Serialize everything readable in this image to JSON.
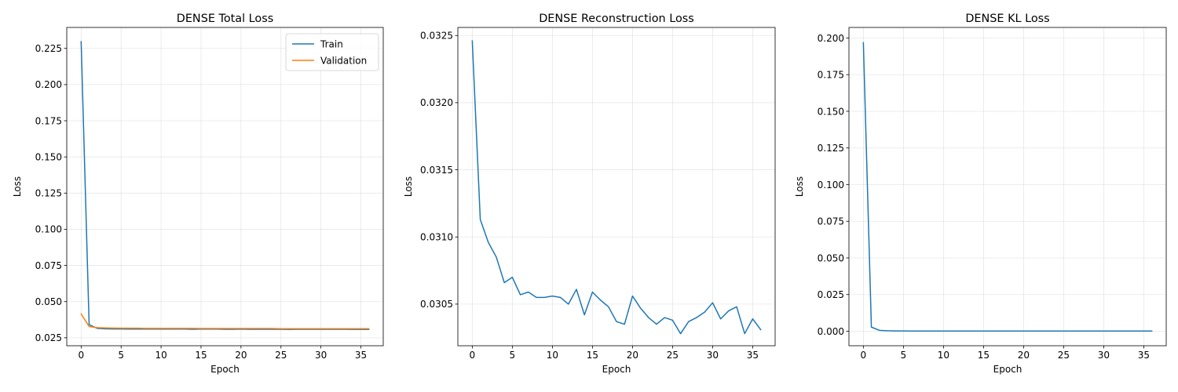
{
  "chart_data": [
    {
      "type": "line",
      "title": "DENSE Total Loss",
      "xlabel": "Epoch",
      "ylabel": "Loss",
      "xlim": [
        -1.8,
        37.8
      ],
      "ylim": [
        0.0195,
        0.2395
      ],
      "xticks": [
        0,
        5,
        10,
        15,
        20,
        25,
        30,
        35
      ],
      "yticks": [
        0.025,
        0.05,
        0.075,
        0.1,
        0.125,
        0.15,
        0.175,
        0.2,
        0.225
      ],
      "ytick_labels": [
        "0.025",
        "0.050",
        "0.075",
        "0.100",
        "0.125",
        "0.150",
        "0.175",
        "0.200",
        "0.225"
      ],
      "grid": true,
      "legend": "top-right",
      "x": [
        0,
        1,
        2,
        3,
        4,
        5,
        6,
        7,
        8,
        9,
        10,
        11,
        12,
        13,
        14,
        15,
        16,
        17,
        18,
        19,
        20,
        21,
        22,
        23,
        24,
        25,
        26,
        27,
        28,
        29,
        30,
        31,
        32,
        33,
        34,
        35,
        36
      ],
      "series": [
        {
          "name": "Train",
          "color": "#1f77b4",
          "values": [
            0.2297,
            0.0341,
            0.0315,
            0.0312,
            0.0311,
            0.0311,
            0.031,
            0.031,
            0.031,
            0.031,
            0.031,
            0.031,
            0.031,
            0.031,
            0.0309,
            0.031,
            0.031,
            0.031,
            0.0309,
            0.0309,
            0.031,
            0.0309,
            0.0309,
            0.0309,
            0.0309,
            0.0309,
            0.0308,
            0.0309,
            0.0309,
            0.0309,
            0.0309,
            0.0309,
            0.0309,
            0.0309,
            0.0308,
            0.0309,
            0.0308
          ]
        },
        {
          "name": "Validation",
          "color": "#ff7f0e",
          "values": [
            0.0415,
            0.0328,
            0.032,
            0.0318,
            0.0317,
            0.0316,
            0.0316,
            0.0316,
            0.0315,
            0.0315,
            0.0315,
            0.0315,
            0.0315,
            0.0315,
            0.0315,
            0.0314,
            0.0314,
            0.0314,
            0.0314,
            0.0314,
            0.0314,
            0.0314,
            0.0314,
            0.0314,
            0.0314,
            0.0313,
            0.0313,
            0.0313,
            0.0313,
            0.0313,
            0.0313,
            0.0313,
            0.0313,
            0.0313,
            0.0313,
            0.0313,
            0.0313
          ]
        }
      ]
    },
    {
      "type": "line",
      "title": "DENSE Reconstruction Loss",
      "xlabel": "Epoch",
      "ylabel": "Loss",
      "xlim": [
        -1.8,
        37.8
      ],
      "ylim": [
        0.03019,
        0.03256
      ],
      "xticks": [
        0,
        5,
        10,
        15,
        20,
        25,
        30,
        35
      ],
      "yticks": [
        0.0305,
        0.031,
        0.0315,
        0.032,
        0.0325
      ],
      "ytick_labels": [
        "0.0305",
        "0.0310",
        "0.0315",
        "0.0320",
        "0.0325"
      ],
      "grid": true,
      "legend": "",
      "x": [
        0,
        1,
        2,
        3,
        4,
        5,
        6,
        7,
        8,
        9,
        10,
        11,
        12,
        13,
        14,
        15,
        16,
        17,
        18,
        19,
        20,
        21,
        22,
        23,
        24,
        25,
        26,
        27,
        28,
        29,
        30,
        31,
        32,
        33,
        34,
        35,
        36
      ],
      "series": [
        {
          "color": "#1f77b4",
          "values": [
            0.03246,
            0.03113,
            0.03096,
            0.03085,
            0.03066,
            0.0307,
            0.03057,
            0.03059,
            0.03055,
            0.03055,
            0.03056,
            0.03055,
            0.0305,
            0.03061,
            0.03042,
            0.03059,
            0.03053,
            0.03048,
            0.03037,
            0.03035,
            0.03056,
            0.03047,
            0.0304,
            0.03035,
            0.0304,
            0.03038,
            0.03028,
            0.03037,
            0.0304,
            0.03044,
            0.03051,
            0.03039,
            0.03045,
            0.03048,
            0.03028,
            0.03039,
            0.03031
          ]
        }
      ]
    },
    {
      "type": "line",
      "title": "DENSE KL Loss",
      "xlabel": "Epoch",
      "ylabel": "Loss",
      "xlim": [
        -1.8,
        37.8
      ],
      "ylim": [
        -0.0099,
        0.2072
      ],
      "xticks": [
        0,
        5,
        10,
        15,
        20,
        25,
        30,
        35
      ],
      "yticks": [
        0.0,
        0.025,
        0.05,
        0.075,
        0.1,
        0.125,
        0.15,
        0.175,
        0.2
      ],
      "ytick_labels": [
        "0.000",
        "0.025",
        "0.050",
        "0.075",
        "0.100",
        "0.125",
        "0.150",
        "0.175",
        "0.200"
      ],
      "grid": true,
      "legend": "",
      "x": [
        0,
        1,
        2,
        3,
        4,
        5,
        6,
        7,
        8,
        9,
        10,
        11,
        12,
        13,
        14,
        15,
        16,
        17,
        18,
        19,
        20,
        21,
        22,
        23,
        24,
        25,
        26,
        27,
        28,
        29,
        30,
        31,
        32,
        33,
        34,
        35,
        36
      ],
      "series": [
        {
          "color": "#1f77b4",
          "values": [
            0.1968,
            0.0028,
            0.0006,
            0.0003,
            0.0002,
            0.0002,
            0.0001,
            0.0001,
            0.0001,
            0.0001,
            0.0001,
            0.0001,
            0.0001,
            0.0001,
            0.0001,
            0.0001,
            0.0001,
            0.0001,
            0.0001,
            0.0001,
            0.0001,
            0.0001,
            0.0001,
            0.0001,
            0.0001,
            0.0001,
            0.0001,
            0.0001,
            0.0001,
            0.0001,
            0.0001,
            0.0001,
            0.0001,
            0.0001,
            0.0001,
            0.0001,
            0.0001
          ]
        }
      ]
    }
  ]
}
